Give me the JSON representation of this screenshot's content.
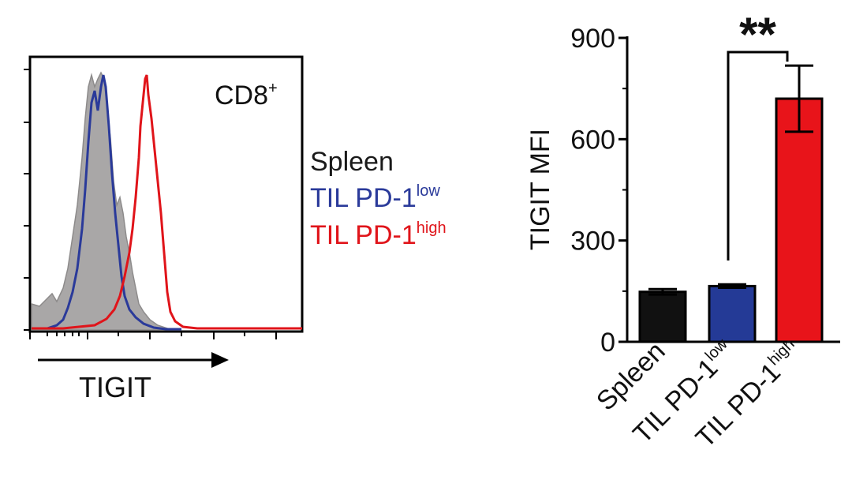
{
  "histogram": {
    "panel_label": "CD8",
    "panel_label_sup": "+",
    "x_axis_label": "TIGIT",
    "legend": [
      {
        "name": "Spleen",
        "sup": "",
        "color": "#1a1a1a"
      },
      {
        "name": "TIL PD-1",
        "sup": "low",
        "color": "#2a3a9a"
      },
      {
        "name": "TIL PD-1",
        "sup": "high",
        "color": "#e0141a"
      }
    ],
    "colors": {
      "spleen_fill": "#a9a7a7",
      "spleen_edge": "#8d8b8b",
      "low": "#2a3a9a",
      "high": "#e0141a"
    }
  },
  "chart_data": {
    "type": "bar",
    "categories": [
      {
        "name": "Spleen",
        "sup": ""
      },
      {
        "name": "TIL PD-1",
        "sup": "low"
      },
      {
        "name": "TIL PD-1",
        "sup": "high"
      }
    ],
    "values": [
      148,
      165,
      720
    ],
    "errors": [
      8,
      5,
      98
    ],
    "colors": [
      "#111111",
      "#243a96",
      "#e8141a"
    ],
    "ylabel": "TIGIT MFI",
    "ylim": [
      0,
      900
    ],
    "yticks": [
      "0",
      "300",
      "600",
      "900"
    ],
    "significance": {
      "from": 1,
      "to": 2,
      "label": "**"
    }
  }
}
